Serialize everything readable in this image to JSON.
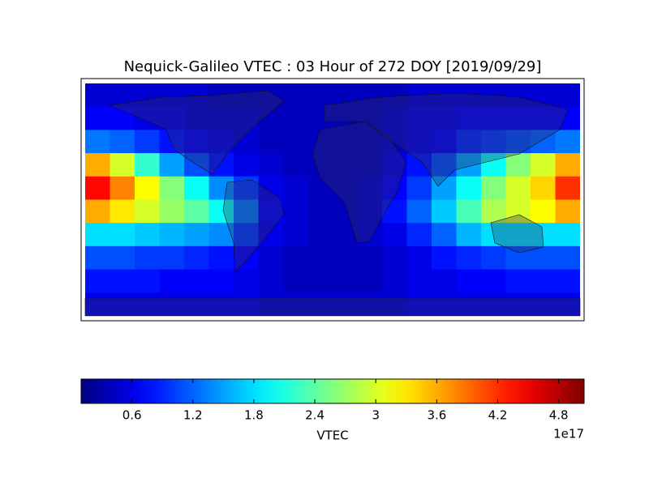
{
  "chart_data": {
    "type": "heatmap",
    "title": "Nequick-Galileo VTEC : 03 Hour of 272 DOY [2019/09/29]",
    "colorbar_label": "VTEC",
    "colorbar_offset": "1e17",
    "colormap": "jet",
    "clim": [
      0.1,
      5.05
    ],
    "colorbar_ticks": [
      0.6,
      1.2,
      1.8,
      2.4,
      3.0,
      3.6,
      4.2,
      4.8
    ],
    "xlim": [
      -180,
      180
    ],
    "ylim": [
      -80,
      90
    ],
    "x": [
      -171,
      -153,
      -135,
      -117,
      -99,
      -81,
      -63,
      -45,
      -27,
      -9,
      9,
      27,
      45,
      63,
      81,
      99,
      117,
      135,
      153,
      171
    ],
    "y": [
      81.5,
      64.5,
      47.5,
      30.5,
      13.5,
      -3.5,
      -20.5,
      -37.5,
      -54.5,
      -71.5
    ],
    "values": [
      [
        0.5,
        0.5,
        0.5,
        0.5,
        0.5,
        0.4,
        0.4,
        0.4,
        0.4,
        0.4,
        0.4,
        0.4,
        0.4,
        0.5,
        0.5,
        0.5,
        0.5,
        0.5,
        0.5,
        0.5
      ],
      [
        0.7,
        0.7,
        0.6,
        0.6,
        0.5,
        0.5,
        0.5,
        0.4,
        0.4,
        0.4,
        0.4,
        0.4,
        0.5,
        0.6,
        0.6,
        0.7,
        0.7,
        0.7,
        0.7,
        0.7
      ],
      [
        1.3,
        1.2,
        1.0,
        0.8,
        0.7,
        0.6,
        0.5,
        0.4,
        0.4,
        0.4,
        0.4,
        0.4,
        0.5,
        0.6,
        0.7,
        0.9,
        1.0,
        1.1,
        1.2,
        1.3
      ],
      [
        3.6,
        3.0,
        2.2,
        1.5,
        1.1,
        0.8,
        0.6,
        0.5,
        0.4,
        0.4,
        0.4,
        0.4,
        0.6,
        0.8,
        1.1,
        1.5,
        2.0,
        2.6,
        3.0,
        3.6
      ],
      [
        4.4,
        3.8,
        3.2,
        2.6,
        2.0,
        1.4,
        1.0,
        0.6,
        0.5,
        0.4,
        0.4,
        0.5,
        0.7,
        1.0,
        1.5,
        2.0,
        2.6,
        3.0,
        3.4,
        4.2
      ],
      [
        3.6,
        3.3,
        3.0,
        2.7,
        2.4,
        2.0,
        1.3,
        0.7,
        0.5,
        0.4,
        0.4,
        0.5,
        0.8,
        1.2,
        1.7,
        2.3,
        2.8,
        3.0,
        3.2,
        3.6
      ],
      [
        1.8,
        1.8,
        1.7,
        1.6,
        1.5,
        1.4,
        1.0,
        0.6,
        0.5,
        0.4,
        0.4,
        0.5,
        0.6,
        0.9,
        1.2,
        1.6,
        1.8,
        1.8,
        1.8,
        1.8
      ],
      [
        1.1,
        1.1,
        1.0,
        1.0,
        0.9,
        0.8,
        0.7,
        0.5,
        0.4,
        0.4,
        0.4,
        0.4,
        0.5,
        0.6,
        0.8,
        0.9,
        1.0,
        1.1,
        1.1,
        1.1
      ],
      [
        0.8,
        0.8,
        0.8,
        0.7,
        0.7,
        0.7,
        0.6,
        0.5,
        0.4,
        0.4,
        0.4,
        0.4,
        0.5,
        0.6,
        0.6,
        0.7,
        0.7,
        0.8,
        0.8,
        0.8
      ],
      [
        0.6,
        0.6,
        0.6,
        0.6,
        0.6,
        0.6,
        0.6,
        0.5,
        0.5,
        0.5,
        0.5,
        0.5,
        0.5,
        0.6,
        0.6,
        0.6,
        0.6,
        0.6,
        0.6,
        0.6
      ]
    ]
  }
}
